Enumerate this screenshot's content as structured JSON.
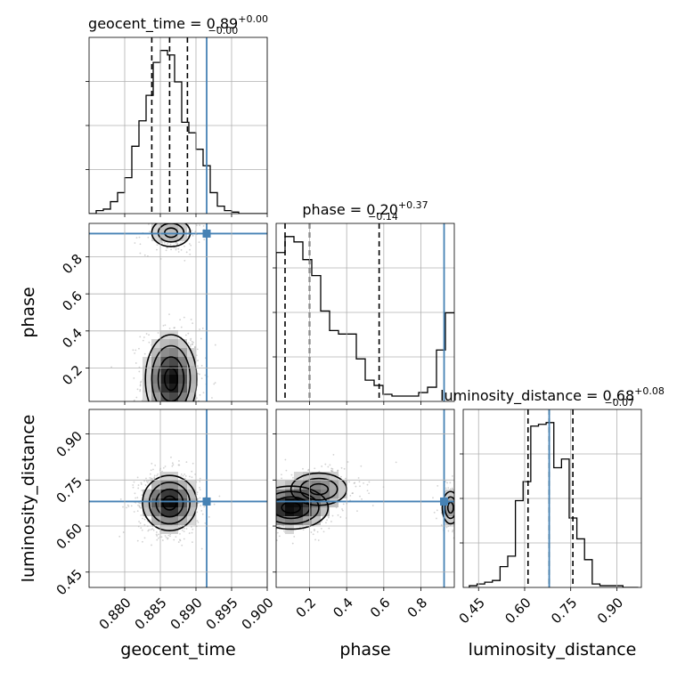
{
  "chart_data": {
    "type": "corner",
    "parameters": [
      "geocent_time",
      "phase",
      "luminosity_distance"
    ],
    "truths": {
      "geocent_time": 0.8915,
      "phase": 0.925,
      "luminosity_distance": 0.68
    },
    "colors": {
      "truth": "#4682b4",
      "hist": "#000000",
      "grid": "#b0b0b0",
      "points": "#7f7f7f"
    },
    "grid": true,
    "axes": {
      "geocent_time": {
        "range": [
          0.875,
          0.9
        ],
        "ticks": [
          0.88,
          0.885,
          0.89,
          0.895,
          0.9
        ],
        "tick_labels": [
          "0.880",
          "0.885",
          "0.890",
          "0.895",
          "0.900"
        ],
        "label": "geocent_time"
      },
      "phase": {
        "range": [
          0.02,
          0.98
        ],
        "ticks": [
          0.2,
          0.4,
          0.6,
          0.8
        ],
        "tick_labels": [
          "0.2",
          "0.4",
          "0.6",
          "0.8"
        ],
        "label": "phase"
      },
      "luminosity_distance": {
        "range": [
          0.4,
          0.98
        ],
        "ticks": [
          0.45,
          0.6,
          0.75,
          0.9
        ],
        "tick_labels": [
          "0.45",
          "0.60",
          "0.75",
          "0.90"
        ],
        "label": "luminosity_distance"
      }
    },
    "diagonal": [
      {
        "param": "geocent_time",
        "title": {
          "text": "geocent_time = 0.89",
          "sup": "+0.00",
          "sub": "−0.00"
        },
        "quantiles": [
          0.8838,
          0.8863,
          0.8888
        ],
        "bin_edges": [
          0.875,
          0.876,
          0.877,
          0.878,
          0.879,
          0.88,
          0.881,
          0.882,
          0.883,
          0.884,
          0.885,
          0.886,
          0.887,
          0.888,
          0.889,
          0.89,
          0.891,
          0.892,
          0.893,
          0.894,
          0.895,
          0.896,
          0.897,
          0.898,
          0.899,
          0.9
        ],
        "counts": [
          0,
          2,
          3,
          8,
          14,
          24,
          45,
          62,
          79,
          101,
          109,
          106,
          88,
          61,
          54,
          43,
          32,
          14,
          5,
          2,
          1,
          0,
          0,
          0,
          0
        ]
      },
      {
        "param": "phase",
        "title": {
          "text": "phase = 0.20",
          "sup": "+0.37",
          "sub": "−0.14"
        },
        "quantiles": [
          0.068,
          0.2,
          0.575
        ],
        "bin_edges": [
          0.02,
          0.068,
          0.116,
          0.164,
          0.212,
          0.26,
          0.308,
          0.356,
          0.404,
          0.452,
          0.5,
          0.548,
          0.596,
          0.644,
          0.692,
          0.74,
          0.788,
          0.836,
          0.884,
          0.932,
          0.98
        ],
        "counts": [
          84,
          93,
          90,
          80,
          71,
          51,
          40,
          38,
          38,
          24,
          12,
          9,
          4,
          3,
          3,
          3,
          5,
          8,
          29,
          50
        ]
      },
      {
        "param": "luminosity_distance",
        "title": {
          "text": "luminosity_distance = 0.68",
          "sup": "+0.08",
          "sub": "−0.07"
        },
        "quantiles": [
          0.611,
          0.68,
          0.757
        ],
        "bin_edges": [
          0.42,
          0.445,
          0.47,
          0.495,
          0.52,
          0.545,
          0.57,
          0.595,
          0.62,
          0.645,
          0.67,
          0.695,
          0.72,
          0.745,
          0.77,
          0.795,
          0.82,
          0.845,
          0.87,
          0.895,
          0.92,
          0.945,
          0.97
        ],
        "counts": [
          1,
          2,
          3,
          4,
          12,
          18,
          50,
          61,
          93,
          94,
          95,
          69,
          74,
          40,
          28,
          16,
          2,
          1,
          1,
          1,
          0,
          0
        ]
      }
    ],
    "pairs": [
      {
        "x": "geocent_time",
        "y": "phase",
        "modes": [
          {
            "x": 0.8865,
            "y": 0.14,
            "sx": 0.0018,
            "sy": 0.12,
            "w": 0.78
          },
          {
            "x": 0.8865,
            "y": 0.93,
            "sx": 0.0018,
            "sy": 0.05,
            "w": 0.22
          }
        ]
      },
      {
        "x": "geocent_time",
        "y": "luminosity_distance",
        "modes": [
          {
            "x": 0.8863,
            "y": 0.675,
            "sx": 0.0019,
            "sy": 0.045,
            "w": 1.0
          }
        ]
      },
      {
        "x": "phase",
        "y": "luminosity_distance",
        "modes": [
          {
            "x": 0.1,
            "y": 0.66,
            "sx": 0.1,
            "sy": 0.035,
            "w": 0.55
          },
          {
            "x": 0.25,
            "y": 0.72,
            "sx": 0.1,
            "sy": 0.035,
            "w": 0.25
          },
          {
            "x": 0.96,
            "y": 0.66,
            "sx": 0.03,
            "sy": 0.035,
            "w": 0.2
          }
        ]
      }
    ]
  }
}
